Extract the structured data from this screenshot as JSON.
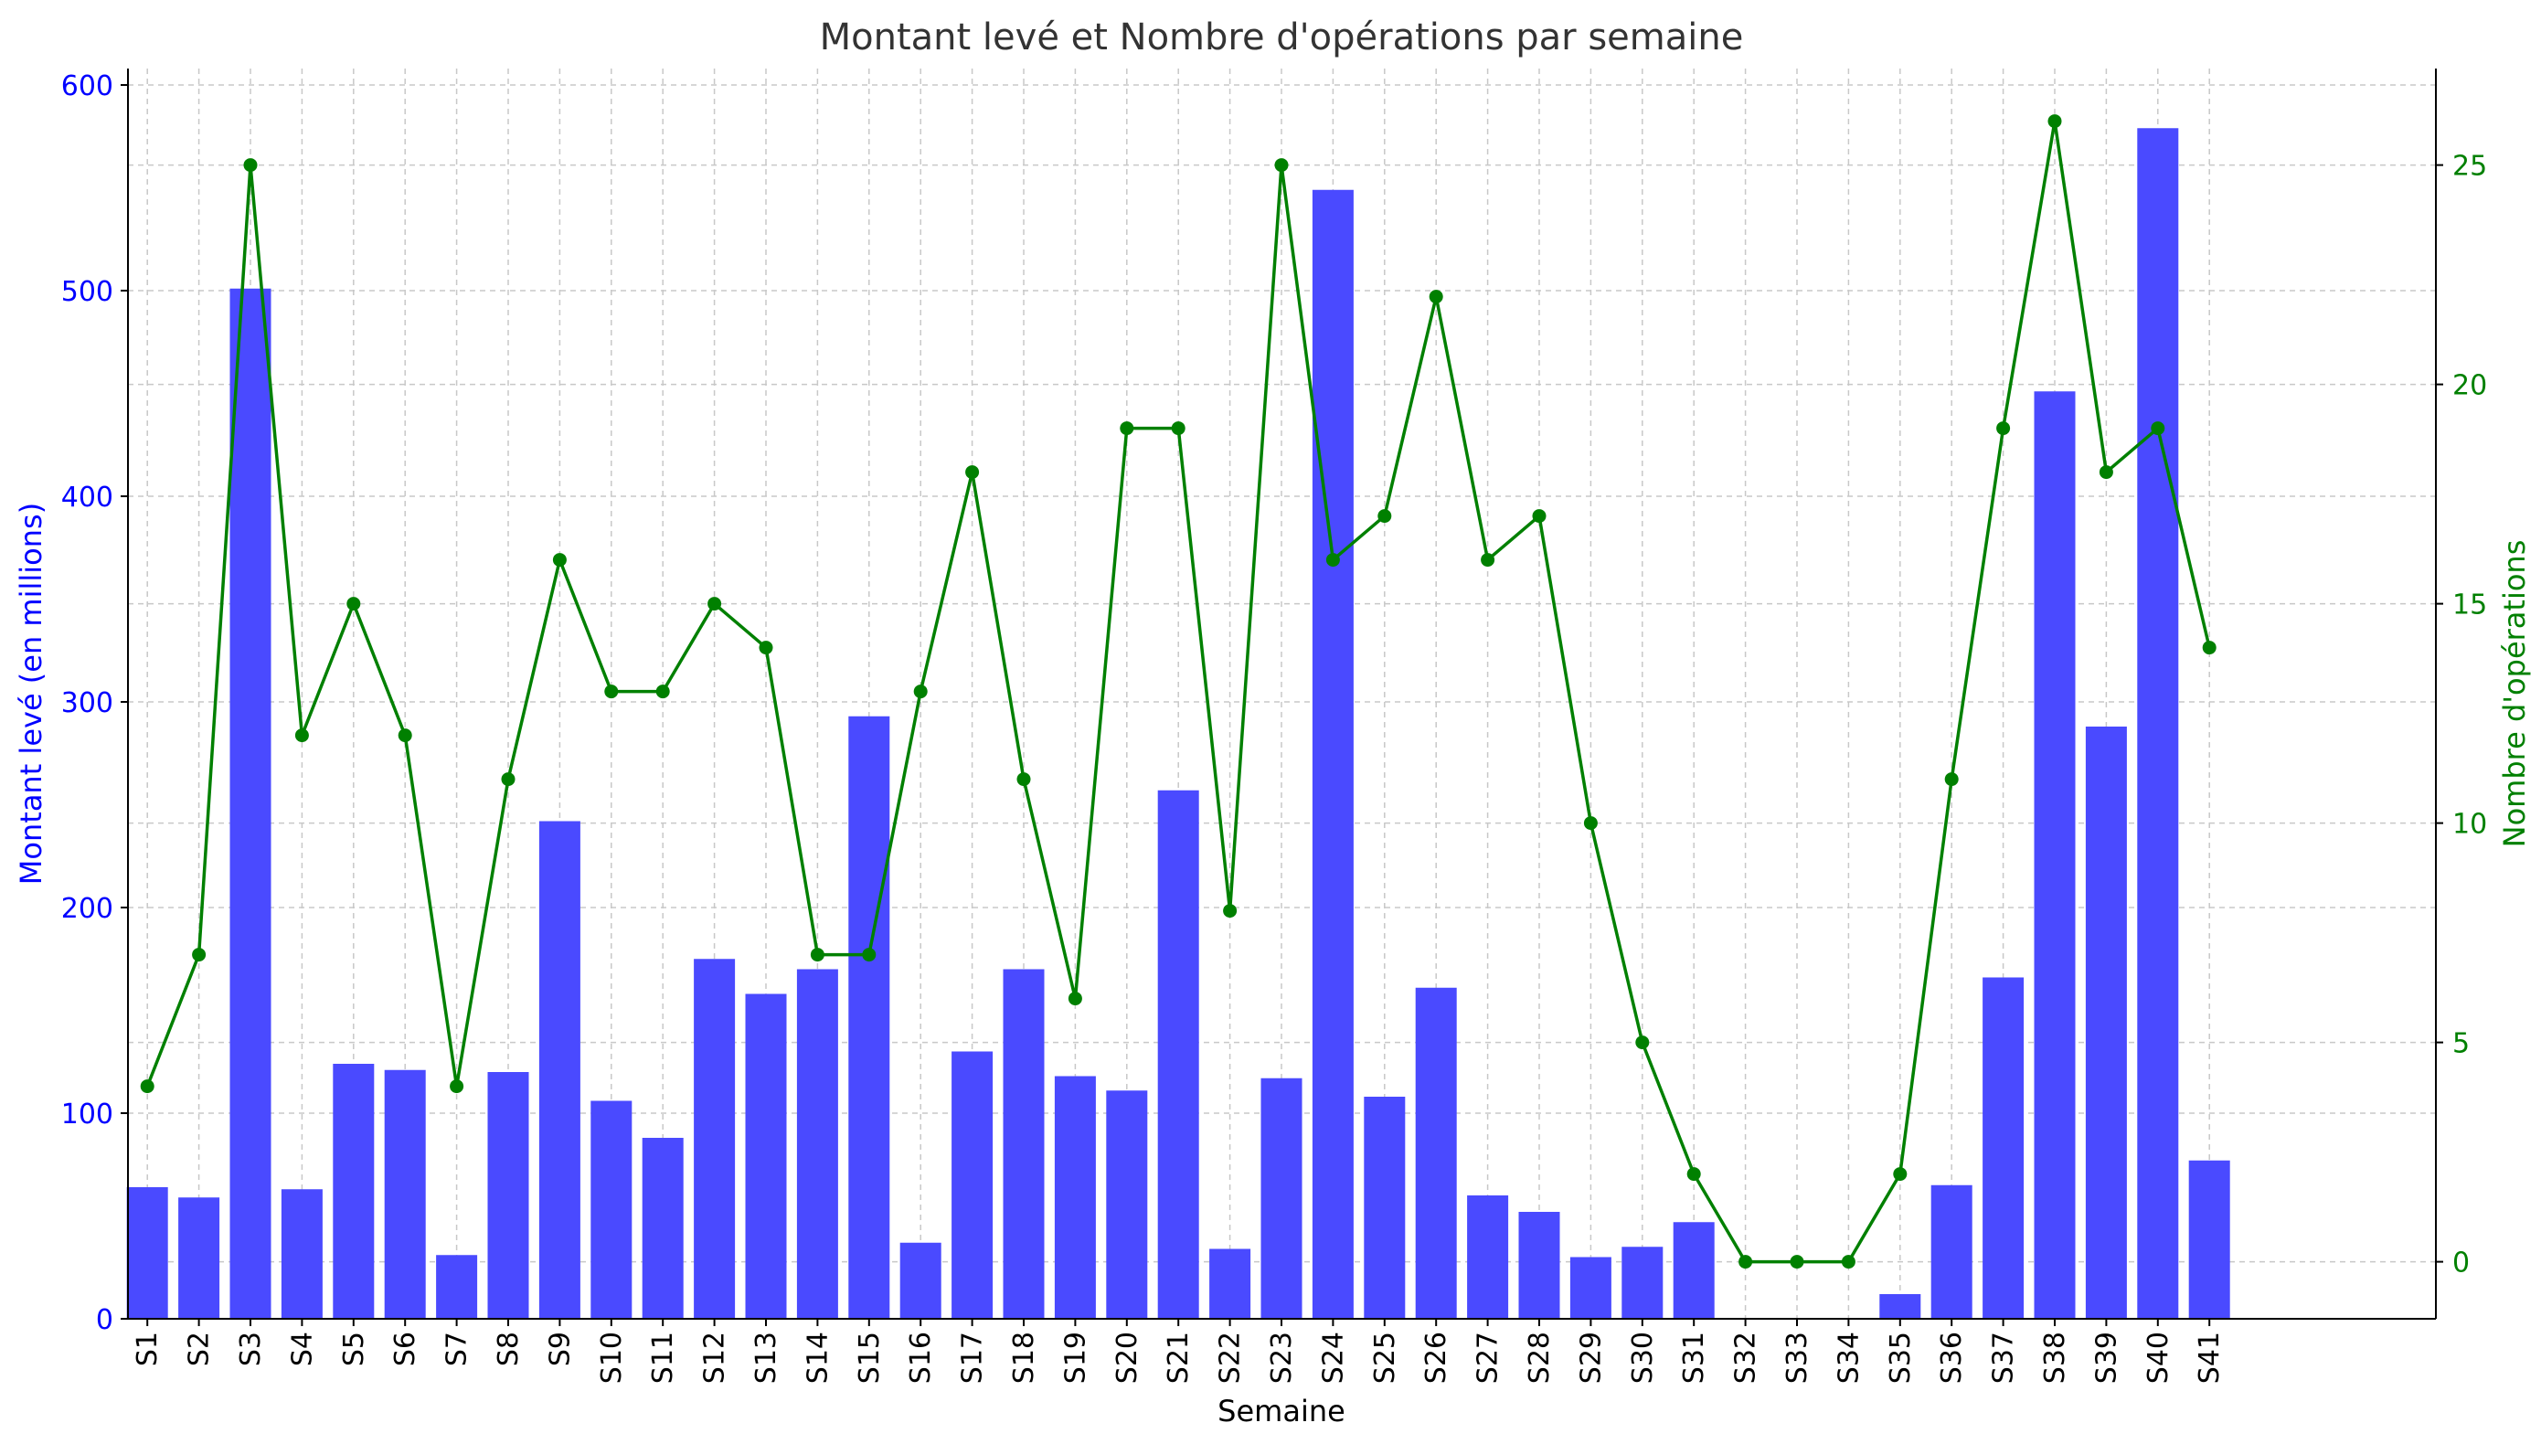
{
  "chart_data": {
    "type": "bar+line",
    "title": "Montant levé et Nombre d'opérations par semaine",
    "xlabel": "Semaine",
    "ylabel_left": "Montant levé (en millions)",
    "ylabel_right": "Nombre d'opérations",
    "categories": [
      "S1",
      "S2",
      "S3",
      "S4",
      "S5",
      "S6",
      "S7",
      "S8",
      "S9",
      "S10",
      "S11",
      "S12",
      "S13",
      "S14",
      "S15",
      "S16",
      "S17",
      "S18",
      "S19",
      "S20",
      "S21",
      "S22",
      "S23",
      "S24",
      "S25",
      "S26",
      "S27",
      "S28",
      "S29",
      "S30",
      "S31",
      "S32",
      "S33",
      "S34",
      "S35",
      "S36",
      "S37",
      "S38",
      "S39",
      "S40",
      "S41"
    ],
    "series": [
      {
        "name": "Montant levé (en millions)",
        "type": "bar",
        "axis": "left",
        "color": "#4a4aff",
        "values": [
          64,
          59,
          501,
          63,
          124,
          121,
          31,
          120,
          242,
          106,
          88,
          175,
          158,
          170,
          293,
          37,
          130,
          170,
          118,
          111,
          257,
          34,
          117,
          549,
          108,
          161,
          60,
          52,
          30,
          35,
          47,
          0,
          0,
          0,
          12,
          65,
          166,
          451,
          288,
          579,
          77
        ]
      },
      {
        "name": "Nombre d'opérations",
        "type": "line",
        "axis": "right",
        "color": "#008000",
        "values": [
          4,
          7,
          25,
          12,
          15,
          12,
          4,
          11,
          16,
          13,
          13,
          15,
          14,
          7,
          7,
          13,
          18,
          11,
          6,
          19,
          19,
          8,
          25,
          16,
          17,
          22,
          16,
          17,
          10,
          5,
          2,
          0,
          0,
          0,
          2,
          11,
          19,
          26,
          18,
          19,
          14
        ]
      }
    ],
    "ylim_left": [
      0,
      608
    ],
    "ylim_right": [
      -1.3,
      27.2
    ],
    "yticks_left": [
      0,
      100,
      200,
      300,
      400,
      500,
      600
    ],
    "yticks_right": [
      0,
      5,
      10,
      15,
      20,
      25
    ],
    "grid": true,
    "left_axis_color": "#0000ff",
    "right_axis_color": "#008000"
  }
}
